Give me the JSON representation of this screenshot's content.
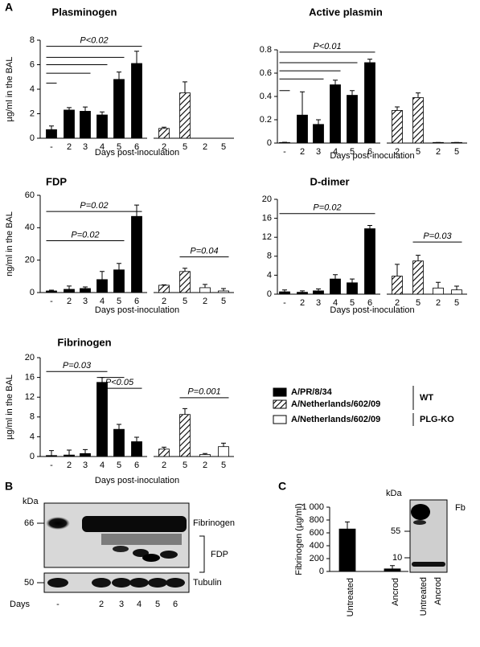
{
  "panels": {
    "a": "A",
    "b": "B",
    "c": "C"
  },
  "chart_data": [
    {
      "type": "bar",
      "title": "Plasminogen",
      "ylabel": "µg/ml in the BAL",
      "xlabel": "Days post-inoculation",
      "categories": [
        "-",
        "2",
        "3",
        "4",
        "5",
        "6",
        "2",
        "5",
        "2",
        "5"
      ],
      "series": [
        {
          "color": "#000000",
          "pattern": "solid",
          "values": [
            0.7,
            2.3,
            2.2,
            1.9,
            4.8,
            6.1,
            null,
            null,
            null,
            null
          ],
          "errors": [
            0.3,
            0.2,
            0.35,
            0.25,
            0.6,
            1.0,
            null,
            null,
            null,
            null
          ]
        },
        {
          "color": "#000000",
          "pattern": "hatch",
          "values": [
            null,
            null,
            null,
            null,
            null,
            null,
            0.8,
            3.7,
            null,
            null
          ],
          "errors": [
            null,
            null,
            null,
            null,
            null,
            null,
            0.1,
            0.9,
            null,
            null
          ]
        },
        {
          "color": "#ffffff",
          "pattern": "solid",
          "values": [
            null,
            null,
            null,
            null,
            null,
            null,
            null,
            null,
            0,
            0
          ],
          "errors": [
            null,
            null,
            null,
            null,
            null,
            null,
            null,
            null,
            0,
            0
          ]
        }
      ],
      "ylim": [
        0,
        8
      ],
      "yticks": [
        0,
        2,
        4,
        6,
        8
      ],
      "brackets": [
        {
          "label": "P<0.02",
          "from": 0,
          "to": 5,
          "y": 7.5
        },
        {
          "from": 0,
          "to": 4,
          "y": 6.6
        },
        {
          "from": 0,
          "to": 3,
          "y": 6.0
        },
        {
          "from": 0,
          "to": 2,
          "y": 5.3
        },
        {
          "from": 0,
          "to": 0,
          "y": 4.5
        }
      ]
    },
    {
      "type": "bar",
      "title": "Active plasmin",
      "xlabel": "Days post-inoculation",
      "categories": [
        "-",
        "2",
        "3",
        "4",
        "5",
        "6",
        "2",
        "5",
        "2",
        "5"
      ],
      "series": [
        {
          "color": "#000000",
          "pattern": "solid",
          "values": [
            0.005,
            0.24,
            0.16,
            0.5,
            0.41,
            0.69,
            null,
            null,
            null,
            null
          ],
          "errors": [
            0.002,
            0.2,
            0.04,
            0.04,
            0.04,
            0.03,
            null,
            null,
            null,
            null
          ]
        },
        {
          "color": "#000000",
          "pattern": "hatch",
          "values": [
            null,
            null,
            null,
            null,
            null,
            null,
            0.28,
            0.39,
            null,
            null
          ],
          "errors": [
            null,
            null,
            null,
            null,
            null,
            null,
            0.03,
            0.04,
            null,
            null
          ]
        },
        {
          "color": "#ffffff",
          "pattern": "solid",
          "values": [
            null,
            null,
            null,
            null,
            null,
            null,
            null,
            null,
            0.005,
            0.005
          ],
          "errors": [
            null,
            null,
            null,
            null,
            null,
            null,
            null,
            null,
            0,
            0
          ]
        }
      ],
      "ylim": [
        0,
        0.8
      ],
      "yticks": [
        0,
        0.2,
        0.4,
        0.6,
        0.8
      ],
      "brackets": [
        {
          "label": "P<0.01",
          "from": 0,
          "to": 5,
          "y": 0.78
        },
        {
          "from": 0,
          "to": 4,
          "y": 0.69
        },
        {
          "from": 0,
          "to": 3,
          "y": 0.62
        },
        {
          "from": 0,
          "to": 2,
          "y": 0.55
        },
        {
          "from": 0,
          "to": 0,
          "y": 0.45
        }
      ]
    },
    {
      "type": "bar",
      "title": "FDP",
      "ylabel": "ng/ml in the BAL",
      "xlabel": "Days post-inoculation",
      "categories": [
        "-",
        "2",
        "3",
        "4",
        "5",
        "6",
        "2",
        "5",
        "2",
        "5"
      ],
      "series": [
        {
          "color": "#000000",
          "pattern": "solid",
          "values": [
            1,
            2,
            2.5,
            8,
            14,
            47,
            null,
            null,
            null,
            null
          ],
          "errors": [
            0.5,
            2,
            1,
            5,
            4,
            7,
            null,
            null,
            null,
            null
          ]
        },
        {
          "color": "#000000",
          "pattern": "hatch",
          "values": [
            null,
            null,
            null,
            null,
            null,
            null,
            4.5,
            13,
            null,
            null
          ],
          "errors": [
            null,
            null,
            null,
            null,
            null,
            null,
            0.3,
            2,
            null,
            null
          ]
        },
        {
          "color": "#ffffff",
          "pattern": "solid",
          "values": [
            null,
            null,
            null,
            null,
            null,
            null,
            null,
            null,
            3,
            1
          ],
          "errors": [
            null,
            null,
            null,
            null,
            null,
            null,
            null,
            null,
            2,
            1.5
          ]
        }
      ],
      "ylim": [
        0,
        60
      ],
      "yticks": [
        0,
        20,
        40,
        60
      ],
      "brackets": [
        {
          "label": "P=0.02",
          "from": 0,
          "to": 5,
          "y": 50
        },
        {
          "label": "P=0.02",
          "from": 0,
          "to": 4,
          "y": 32
        },
        {
          "label": "P=0.04",
          "from": 7,
          "to": 9,
          "y": 22
        }
      ]
    },
    {
      "type": "bar",
      "title": "D-dimer",
      "xlabel": "Days post-inoculation",
      "categories": [
        "-",
        "2",
        "3",
        "4",
        "5",
        "6",
        "2",
        "5",
        "2",
        "5"
      ],
      "series": [
        {
          "color": "#000000",
          "pattern": "solid",
          "values": [
            0.5,
            0.4,
            0.7,
            3.2,
            2.4,
            13.8,
            null,
            null,
            null,
            null
          ],
          "errors": [
            0.4,
            0.3,
            0.4,
            0.9,
            0.8,
            0.7,
            null,
            null,
            null,
            null
          ]
        },
        {
          "color": "#000000",
          "pattern": "hatch",
          "values": [
            null,
            null,
            null,
            null,
            null,
            null,
            3.8,
            7,
            null,
            null
          ],
          "errors": [
            null,
            null,
            null,
            null,
            null,
            null,
            2.5,
            1.2,
            null,
            null
          ]
        },
        {
          "color": "#ffffff",
          "pattern": "solid",
          "values": [
            null,
            null,
            null,
            null,
            null,
            null,
            null,
            null,
            1.3,
            0.9
          ],
          "errors": [
            null,
            null,
            null,
            null,
            null,
            null,
            null,
            null,
            1.2,
            0.8
          ]
        }
      ],
      "ylim": [
        0,
        20
      ],
      "yticks": [
        0,
        4,
        8,
        12,
        16,
        20
      ],
      "brackets": [
        {
          "label": "P=0.02",
          "from": 0,
          "to": 5,
          "y": 17
        },
        {
          "label": "P=0.03",
          "from": 7,
          "to": 9,
          "y": 11
        }
      ]
    },
    {
      "type": "bar",
      "title": "Fibrinogen",
      "ylabel": "µg/ml in the BAL",
      "xlabel": "Days post-inoculation",
      "categories": [
        "-",
        "2",
        "3",
        "4",
        "5",
        "6",
        "2",
        "5",
        "2",
        "5"
      ],
      "series": [
        {
          "color": "#000000",
          "pattern": "solid",
          "values": [
            0.2,
            0.3,
            0.6,
            15,
            5.5,
            3,
            null,
            null,
            null,
            null
          ],
          "errors": [
            1,
            1,
            0.8,
            1,
            1,
            0.9,
            null,
            null,
            null,
            null
          ]
        },
        {
          "color": "#000000",
          "pattern": "hatch",
          "values": [
            null,
            null,
            null,
            null,
            null,
            null,
            1.5,
            8.5,
            null,
            null
          ],
          "errors": [
            null,
            null,
            null,
            null,
            null,
            null,
            0.4,
            1.2,
            null,
            null
          ]
        },
        {
          "color": "#ffffff",
          "pattern": "solid",
          "values": [
            null,
            null,
            null,
            null,
            null,
            null,
            null,
            null,
            0.4,
            2
          ],
          "errors": [
            null,
            null,
            null,
            null,
            null,
            null,
            null,
            null,
            0.2,
            0.7
          ]
        }
      ],
      "ylim": [
        0,
        20
      ],
      "yticks": [
        0,
        4,
        8,
        12,
        16,
        20
      ],
      "brackets": [
        {
          "label": "P=0.03",
          "from": 0,
          "to": 3,
          "y": 17.2
        },
        {
          "from": 3,
          "to": 4,
          "y": 16
        },
        {
          "label": "P<0.05",
          "from": 3,
          "to": 5,
          "y": 13.8
        },
        {
          "label": "P=0.001",
          "from": 7,
          "to": 9,
          "y": 11.9
        }
      ]
    },
    {
      "type": "bar",
      "ylabel": "Fibrinogen (µg/ml)",
      "categories": [
        "Untreated",
        "Ancrod"
      ],
      "series": [
        {
          "color": "#000000",
          "pattern": "solid",
          "values": [
            660,
            40
          ],
          "errors": [
            110,
            50
          ]
        }
      ],
      "ylim": [
        0,
        1000
      ],
      "yticks": [
        0,
        200,
        400,
        600,
        800,
        {
          "value": 1000,
          "label": "1 000"
        }
      ],
      "brackets": []
    }
  ],
  "legend": {
    "entries": [
      "A/PR/8/34",
      "A/Netherlands/602/09",
      "A/Netherlands/602/09"
    ],
    "groups": [
      "WT",
      "PLG-KO"
    ]
  },
  "blot_b": {
    "unit": "kDa",
    "markers": [
      "66",
      "50"
    ],
    "labels": [
      "Fibrinogen",
      "FDP",
      "Tubulin"
    ],
    "days_label": "Days",
    "lanes": [
      "-",
      "2",
      "3",
      "4",
      "5",
      "6"
    ]
  },
  "blot_c": {
    "unit": "kDa",
    "markers": [
      "55",
      "10"
    ],
    "label": "Fb",
    "lanes": [
      "Untreated",
      "Ancrod"
    ]
  }
}
